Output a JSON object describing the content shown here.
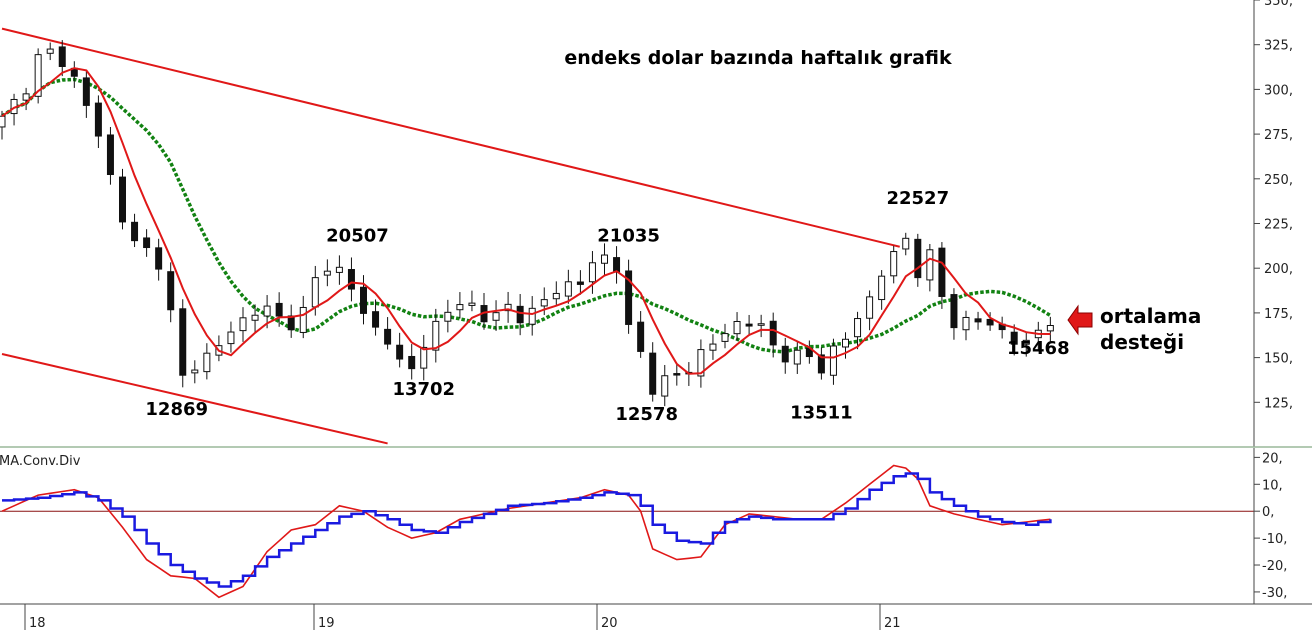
{
  "chart_data": [
    {
      "type": "candlestick",
      "title": "endeks dolar bazında haftalık grafik",
      "x_ticks": [
        "18",
        "19",
        "20",
        "21"
      ],
      "ylim": [
        100,
        350
      ],
      "y_ticks": [
        125,
        150,
        175,
        200,
        225,
        250,
        275,
        300,
        325,
        350
      ],
      "grid": false,
      "moving_averages": [
        {
          "color": "#e01818",
          "style": "solid"
        },
        {
          "color": "#128212",
          "style": "dotted"
        }
      ],
      "trend_lines": [
        {
          "from": {
            "x": 0.0,
            "y": 334
          },
          "to": {
            "x": 74.5,
            "y": 212
          },
          "color": "#e01818"
        },
        {
          "from": {
            "x": 0.0,
            "y": 152
          },
          "to": {
            "x": 32.0,
            "y": 102
          },
          "color": "#e01818"
        }
      ],
      "annotations": [
        {
          "text": "20507",
          "x": 29.5,
          "y": 215
        },
        {
          "text": "21035",
          "x": 52.0,
          "y": 215
        },
        {
          "text": "22527",
          "x": 76.0,
          "y": 236
        },
        {
          "text": "12869",
          "x": 14.5,
          "y": 118
        },
        {
          "text": "13702",
          "x": 35.0,
          "y": 129
        },
        {
          "text": "12578",
          "x": 53.5,
          "y": 115
        },
        {
          "text": "13511",
          "x": 68.0,
          "y": 116
        },
        {
          "text": "15468",
          "x": 86.0,
          "y": 152
        }
      ],
      "callout": {
        "lines": [
          "ortalama",
          "desteği"
        ],
        "color": "#e01818"
      }
    },
    {
      "type": "line",
      "title": "MA.Conv.Div",
      "ylim": [
        -33,
        22
      ],
      "y_ticks": [
        -30,
        -20,
        -10,
        0,
        10,
        20
      ],
      "zero_line": true,
      "series": [
        {
          "color": "#e01818",
          "style": "solid",
          "anchors": [
            [
              0,
              0
            ],
            [
              3,
              6
            ],
            [
              6,
              8
            ],
            [
              8,
              5
            ],
            [
              10,
              -6
            ],
            [
              12,
              -18
            ],
            [
              14,
              -24
            ],
            [
              16,
              -25
            ],
            [
              18,
              -32
            ],
            [
              20,
              -28
            ],
            [
              22,
              -15
            ],
            [
              24,
              -7
            ],
            [
              26,
              -5
            ],
            [
              28,
              2
            ],
            [
              30,
              0
            ],
            [
              32,
              -6
            ],
            [
              34,
              -10
            ],
            [
              36,
              -8
            ],
            [
              38,
              -3
            ],
            [
              40,
              -1
            ],
            [
              42,
              1
            ],
            [
              45,
              3
            ],
            [
              48,
              5
            ],
            [
              50,
              8
            ],
            [
              52,
              6
            ],
            [
              53,
              0
            ],
            [
              54,
              -14
            ],
            [
              56,
              -18
            ],
            [
              58,
              -17
            ],
            [
              60,
              -5
            ],
            [
              62,
              -1
            ],
            [
              64,
              -2
            ],
            [
              66,
              -3
            ],
            [
              68,
              -3
            ],
            [
              70,
              3
            ],
            [
              72,
              10
            ],
            [
              74,
              17
            ],
            [
              75,
              16
            ],
            [
              76,
              12
            ],
            [
              77,
              2
            ],
            [
              79,
              -1
            ],
            [
              81,
              -3
            ],
            [
              83,
              -5
            ],
            [
              85,
              -4
            ],
            [
              87,
              -3
            ]
          ]
        },
        {
          "color": "#1a1ae0",
          "style": "stepped",
          "anchors": [
            [
              0,
              4
            ],
            [
              3,
              5
            ],
            [
              6,
              7
            ],
            [
              8,
              4
            ],
            [
              10,
              -2
            ],
            [
              12,
              -12
            ],
            [
              14,
              -20
            ],
            [
              16,
              -25
            ],
            [
              18,
              -28
            ],
            [
              20,
              -24
            ],
            [
              22,
              -17
            ],
            [
              24,
              -12
            ],
            [
              26,
              -7
            ],
            [
              28,
              -2
            ],
            [
              30,
              0
            ],
            [
              32,
              -3
            ],
            [
              34,
              -7
            ],
            [
              36,
              -8
            ],
            [
              38,
              -4
            ],
            [
              40,
              -1
            ],
            [
              42,
              2
            ],
            [
              45,
              3
            ],
            [
              48,
              5
            ],
            [
              50,
              7
            ],
            [
              52,
              6
            ],
            [
              53,
              2
            ],
            [
              54,
              -5
            ],
            [
              56,
              -11
            ],
            [
              58,
              -12
            ],
            [
              60,
              -4
            ],
            [
              62,
              -2
            ],
            [
              64,
              -3
            ],
            [
              66,
              -3
            ],
            [
              68,
              -3
            ],
            [
              70,
              1
            ],
            [
              72,
              8
            ],
            [
              74,
              13
            ],
            [
              75,
              14
            ],
            [
              76,
              12
            ],
            [
              77,
              7
            ],
            [
              79,
              2
            ],
            [
              81,
              -2
            ],
            [
              83,
              -4
            ],
            [
              85,
              -5
            ],
            [
              87,
              -3
            ]
          ]
        }
      ]
    }
  ]
}
